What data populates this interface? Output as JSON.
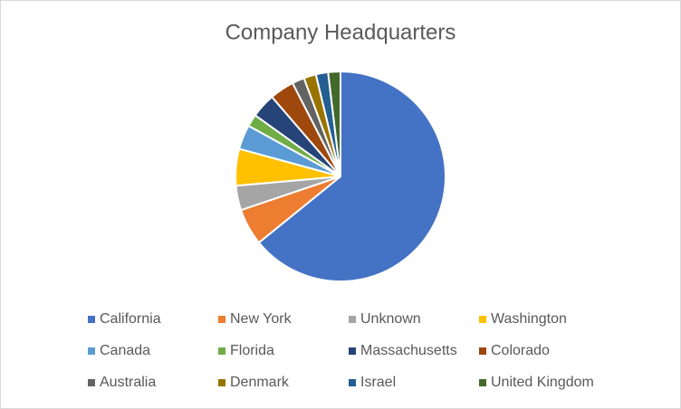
{
  "chart_data": {
    "type": "pie",
    "title": "Company Headquarters",
    "categories": [
      "California",
      "New York",
      "Unknown",
      "Washington",
      "Canada",
      "Florida",
      "Massachusetts",
      "Colorado",
      "Australia",
      "Denmark",
      "Israel",
      "United Kingdom"
    ],
    "values": [
      34,
      3,
      2,
      3,
      2,
      1,
      2,
      2,
      1,
      1,
      1,
      1
    ],
    "colors": [
      "#4472c4",
      "#ed7d31",
      "#a5a5a5",
      "#ffc000",
      "#5b9bd5",
      "#70ad47",
      "#264478",
      "#9e480e",
      "#636363",
      "#997300",
      "#255e91",
      "#43682b"
    ],
    "legend": "bottom"
  }
}
